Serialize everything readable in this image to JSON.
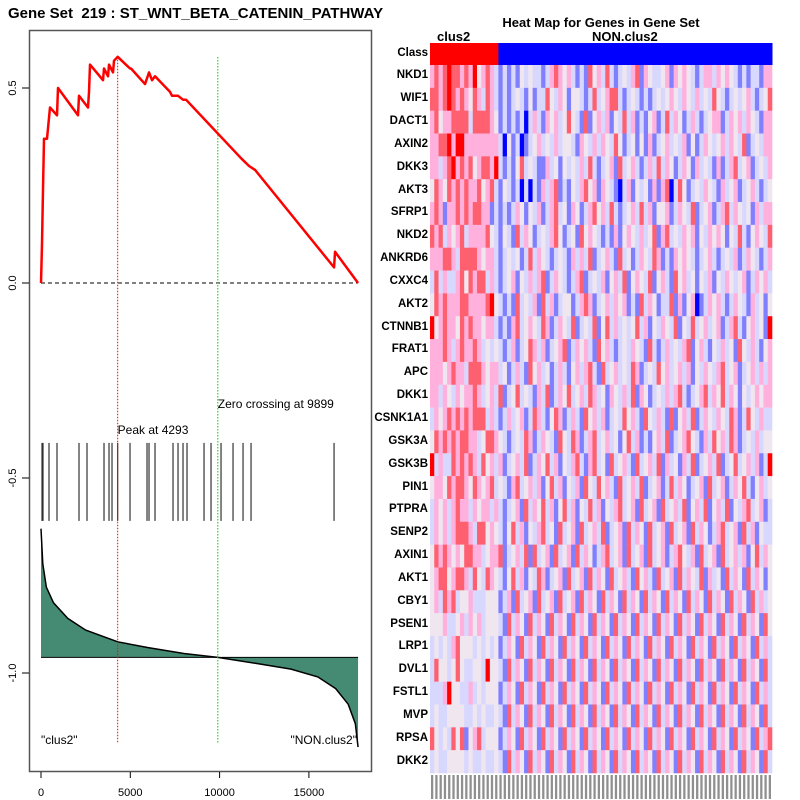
{
  "left_title": "Gene Set  219 : ST_WNT_BETA_CATENIN_PATHWAY",
  "heatmap_title": "Heat Map for Genes in Gene Set",
  "chart_data": [
    {
      "type": "line",
      "name": "running-enrichment-score",
      "title": "Gene Set  219 : ST_WNT_BETA_CATENIN_PATHWAY",
      "xlabel": "",
      "ylabel": "",
      "xlim": [
        0,
        17800
      ],
      "ylim": [
        -1.25,
        0.72
      ],
      "x_ticks": [
        0,
        5000,
        10000,
        15000
      ],
      "x_tick_labels": [
        "0",
        "5000",
        "10000",
        "15000"
      ],
      "y_ticks": [
        0.5,
        0.0,
        -0.5,
        -1.0
      ],
      "y_tick_labels": [
        "0.5",
        "0.0",
        "-0.5",
        "-1.0"
      ],
      "series": [
        {
          "name": "Enrichment score",
          "color": "#ff0000",
          "points": [
            [
              0,
              0.0
            ],
            [
              56,
              0.1
            ],
            [
              112,
              0.24
            ],
            [
              168,
              0.37
            ],
            [
              336,
              0.37
            ],
            [
              504,
              0.45
            ],
            [
              896,
              0.43
            ],
            [
              952,
              0.5
            ],
            [
              2072,
              0.43
            ],
            [
              2128,
              0.48
            ],
            [
              2632,
              0.45
            ],
            [
              2688,
              0.49
            ],
            [
              2744,
              0.56
            ],
            [
              3472,
              0.52
            ],
            [
              3528,
              0.55
            ],
            [
              3752,
              0.53
            ],
            [
              3808,
              0.56
            ],
            [
              4032,
              0.54
            ],
            [
              4088,
              0.57
            ],
            [
              4293,
              0.58
            ],
            [
              4984,
              0.55
            ],
            [
              5040,
              0.55
            ],
            [
              5824,
              0.51
            ],
            [
              6048,
              0.54
            ],
            [
              6216,
              0.52
            ],
            [
              6384,
              0.53
            ],
            [
              7224,
              0.49
            ],
            [
              7336,
              0.48
            ],
            [
              7504,
              0.48
            ],
            [
              7672,
              0.48
            ],
            [
              7952,
              0.47
            ],
            [
              8120,
              0.47
            ],
            [
              9968,
              0.38
            ],
            [
              11200,
              0.32
            ],
            [
              11648,
              0.3
            ],
            [
              11984,
              0.29
            ],
            [
              16408,
              0.04
            ],
            [
              16464,
              0.08
            ],
            [
              17752,
              0.0
            ]
          ]
        }
      ],
      "baseline": 0.0,
      "peak": {
        "rank": 4293,
        "label": "Peak at 4293",
        "color": "#ff0000"
      },
      "zero_crossing": {
        "rank": 9899,
        "label": "Zero crossing at 9899",
        "color": "#00cc00"
      },
      "hits": [
        56,
        112,
        448,
        896,
        2128,
        2576,
        3528,
        3808,
        3976,
        4293,
        4984,
        5936,
        6048,
        6384,
        7392,
        7672,
        7952,
        8176,
        9128,
        9520,
        10080,
        10752,
        11312,
        11760,
        16408
      ],
      "hits_band": [
        -0.41,
        -0.61
      ],
      "ranked_metric": {
        "fill": "#458b74",
        "baseline": -0.96,
        "points": [
          [
            0,
            -0.63
          ],
          [
            100,
            -0.72
          ],
          [
            300,
            -0.78
          ],
          [
            700,
            -0.82
          ],
          [
            1500,
            -0.86
          ],
          [
            2500,
            -0.89
          ],
          [
            4293,
            -0.92
          ],
          [
            6000,
            -0.935
          ],
          [
            8000,
            -0.95
          ],
          [
            9899,
            -0.96
          ],
          [
            12000,
            -0.975
          ],
          [
            14000,
            -0.99
          ],
          [
            15500,
            -1.01
          ],
          [
            16500,
            -1.04
          ],
          [
            17200,
            -1.08
          ],
          [
            17600,
            -1.13
          ],
          [
            17752,
            -1.19
          ]
        ]
      },
      "annotations": [
        {
          "text": "\"clus2\"",
          "position": "bottom-left"
        },
        {
          "text": "\"NON.clus2\"",
          "position": "bottom-right"
        }
      ]
    },
    {
      "type": "heatmap",
      "name": "gene-heatmap",
      "title": "Heat Map for Genes in Gene Set",
      "class_row_label": "Class",
      "classes": [
        {
          "name": "clus2",
          "count": 16,
          "color": "#ff0000"
        },
        {
          "name": "NON.clus2",
          "count": 64,
          "color": "#0000ff"
        }
      ],
      "scale": [
        "#0000ff",
        "#8080ff",
        "#d8d8ff",
        "#f0e6f0",
        "#ffb0dc",
        "#ff6070",
        "#ff0000"
      ],
      "genes": [
        "NKD1",
        "WIF1",
        "DACT1",
        "AXIN2",
        "DKK3",
        "AKT3",
        "SFRP1",
        "NKD2",
        "ANKRD6",
        "CXXC4",
        "AKT2",
        "CTNNB1",
        "FRAT1",
        "APC",
        "DKK1",
        "CSNK1A1",
        "GSK3A",
        "GSK3B",
        "PIN1",
        "PTPRA",
        "SENP2",
        "AXIN1",
        "AKT1",
        "CBY1",
        "PSEN1",
        "LRP1",
        "DVL1",
        "FSTL1",
        "MVP",
        "RPSA",
        "DKK2"
      ],
      "rows": [
        "4545655454634542121213232212454342121534252123245143223414343212442434321212214",
        "5545654543542542121232131225324313321252345521232121232343243242325321232342123",
        "4534455552555543121212024214342353215134241325241213412524312421234412434243214",
        "4455646644444444203120123423242332143242432531231314123423241312432342432512324",
        "4424564545345546212135232114231323242521234152342124252431243142321412452341232",
        "3543545454453452132120202142451213245341432102413231414502531232432142341234212",
        "4541445454554412121243132412452314312453425212342524133412432512341245243231424",
        "5452434524444532132152431232453123153432121413432423514523243413243431325213432",
        "4445542555543442123231252432123214242512342152312432541214343212342123241243212",
        "2524224535455242123413242451243212451232413425134325134215342313241324323412434",
        "3545444554444563212152324152412331245412342434121524312251413401243421243214231",
        "6345443545443442121452343254124325123251352423235241324325132523423412452134231",
        "4445424544542323212412354241234512434215342123243215212423245134213242315324213",
        "4443454425554344231242153423124213424521523423254123253423424132432452341234242",
        "4424324344542342512352321425124352342542314324251431232424521234524352431323434",
        "2434545454555242124234125421354124215342412325342153242151342512432432541253242",
        "3545454554423554321232541243215325412452342313524121342512345321425342541232423",
        "6242254545425342412342512435241324521452315234215234251423142512342512352342412",
        "3443545543543452321452342413524132415325342152342512341252431234152341243521342",
        "2434245442434424212341524352413524132524132452341523415234251342513425132452341",
        "2434245554255343213524132452315234152342512341524315234152341524312452341524132",
        "3545434355442344512342515234152341524312452341523415234124532415234152342413524",
        "3455345542532543213524132541234152341524315234215342152341524325142315243152431",
        "3425452334222333124152341523415234152431524315243152431524315243152431524315242",
        "3334223424342333215243152431524315243152431524315243152431524315243152431524315",
        "2323245333232323124315243152431524315243152431524315243152431524315243152431524",
        "2533235322332633215243152431524315243152431524315243152431524315243152431524315",
        "2224633224232333124315243152431524315243152431524315243152431524315243152431524",
        "2322333322323223215243152431524315243152431524315243152431524315243152431524315",
        "5323253513452333124315243152431524315243152431524315243152431524315243152431524",
        "2322333323223223215243152431524315243152431524315243152431524315243152431524315"
      ]
    }
  ]
}
